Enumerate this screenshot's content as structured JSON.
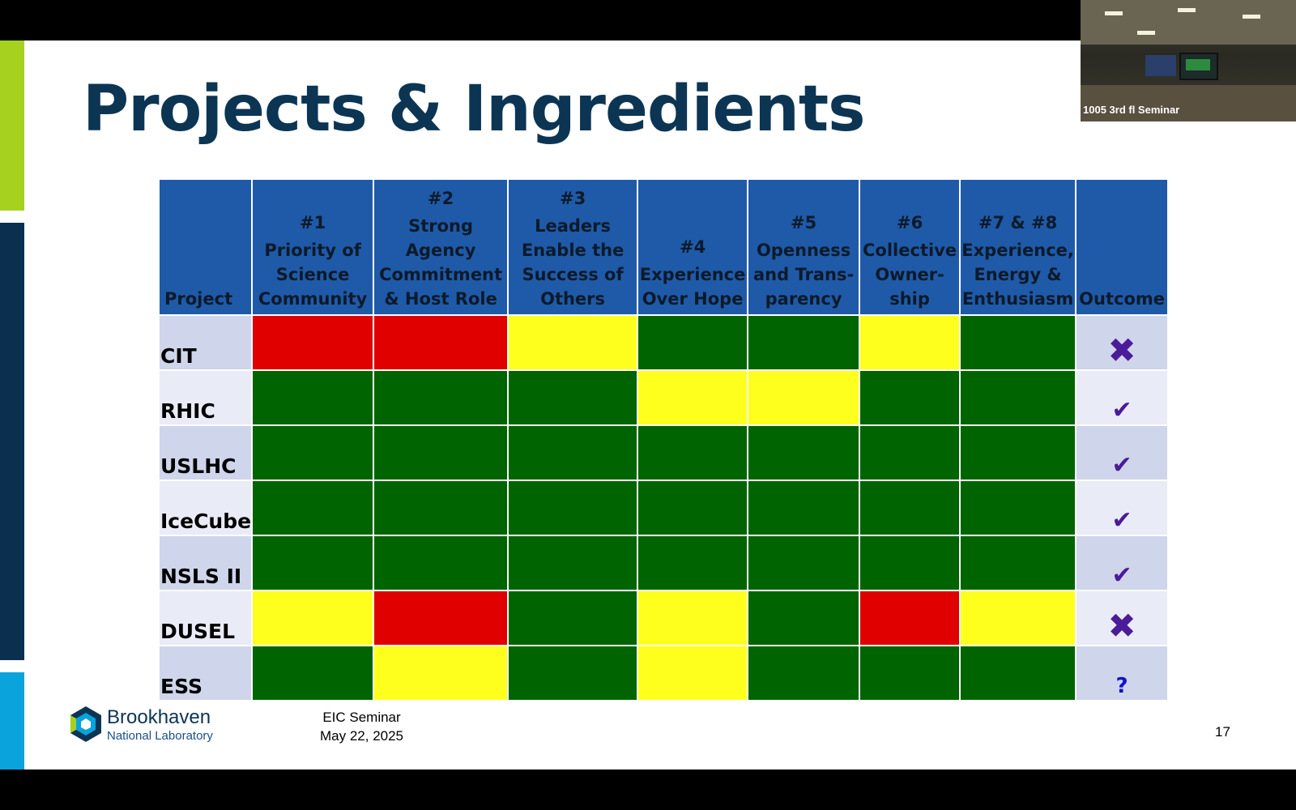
{
  "slide": {
    "title": "Projects & Ingredients",
    "footer_line1": "EIC Seminar",
    "footer_line2": "May 22, 2025",
    "page_number": "17",
    "logo_line1": "Brookhaven",
    "logo_line2": "National Laboratory"
  },
  "camera": {
    "label": "1005 3rd fl Seminar"
  },
  "table": {
    "project_header": "Project",
    "outcome_header": "Outcome",
    "columns": [
      {
        "num": "#1",
        "label": "Priority of Science Community"
      },
      {
        "num": "#2",
        "label": "Strong Agency Commitment & Host Role"
      },
      {
        "num": "#3",
        "label": "Leaders Enable the Success of Others"
      },
      {
        "num": "#4",
        "label": "Experience Over Hope"
      },
      {
        "num": "#5",
        "label": "Openness and Trans-parency"
      },
      {
        "num": "#6",
        "label": "Collective Owner-ship"
      },
      {
        "num": "#7 & #8",
        "label": "Experience, Energy & Enthusiasm"
      }
    ],
    "rows": [
      {
        "project": "CIT",
        "cells": [
          "red",
          "red",
          "yellow",
          "green",
          "green",
          "yellow",
          "green"
        ],
        "outcome": "✖"
      },
      {
        "project": "RHIC",
        "cells": [
          "green",
          "green",
          "green",
          "yellow",
          "yellow",
          "green",
          "green"
        ],
        "outcome": "✔"
      },
      {
        "project": "USLHC",
        "cells": [
          "green",
          "green",
          "green",
          "green",
          "green",
          "green",
          "green"
        ],
        "outcome": "✔"
      },
      {
        "project": "IceCube",
        "cells": [
          "green",
          "green",
          "green",
          "green",
          "green",
          "green",
          "green"
        ],
        "outcome": "✔"
      },
      {
        "project": "NSLS II",
        "cells": [
          "green",
          "green",
          "green",
          "green",
          "green",
          "green",
          "green"
        ],
        "outcome": "✔"
      },
      {
        "project": "DUSEL",
        "cells": [
          "yellow",
          "red",
          "green",
          "yellow",
          "green",
          "red",
          "yellow"
        ],
        "outcome": "✖"
      },
      {
        "project": "ESS",
        "cells": [
          "green",
          "yellow",
          "green",
          "yellow",
          "green",
          "green",
          "green"
        ],
        "outcome": "?"
      }
    ]
  },
  "colors": {
    "red": "#e00000",
    "yellow": "#ffff1e",
    "green": "#006400",
    "header_blue": "#1f5aa8",
    "title_navy": "#0c3554",
    "outcome_purple": "#4b1b9a"
  }
}
